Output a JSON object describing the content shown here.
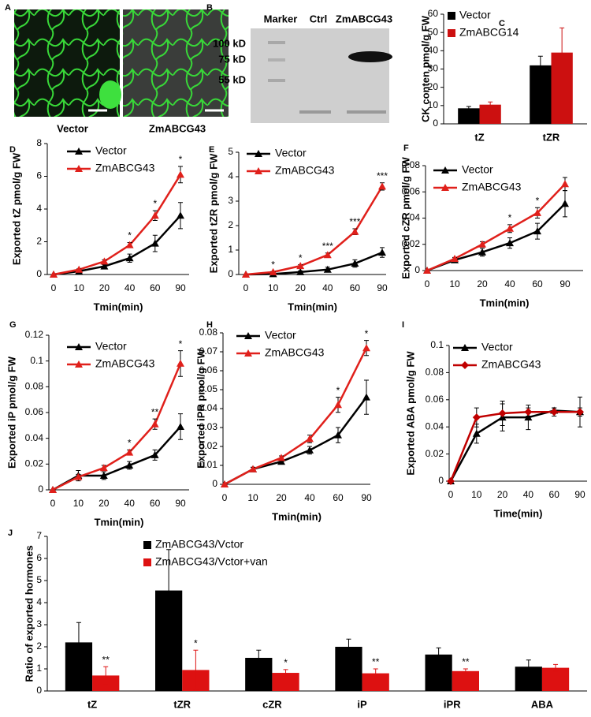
{
  "figure": {
    "panel_a": {
      "label": "A",
      "captions": [
        "Vector",
        "ZmABCG43"
      ]
    },
    "panel_b": {
      "label": "B",
      "lanes": [
        "Marker",
        "Ctrl",
        "ZmABCG43"
      ],
      "markers": [
        "100 kD",
        "75 kD",
        "55 kD"
      ]
    }
  },
  "chart_data": [
    {
      "panel": "C",
      "type": "bar",
      "ylabel": "CK conten pmol/g FW",
      "categories": [
        "tZ",
        "tZR"
      ],
      "series": [
        {
          "name": "Vector",
          "color": "#000000",
          "values": [
            8.5,
            32
          ],
          "errors": [
            1,
            5
          ]
        },
        {
          "name": "ZmABCG14",
          "color": "#cc1010",
          "values": [
            10.5,
            39
          ],
          "errors": [
            1.5,
            13.5
          ]
        }
      ],
      "ylim": [
        0,
        60
      ],
      "yticks": [
        0,
        10,
        20,
        30,
        40,
        50,
        60
      ],
      "legend": "upper left"
    },
    {
      "panel": "D",
      "type": "line",
      "xlabel": "Tmin(min)",
      "ylabel": "Exported tZ pmol/g FW",
      "categories": [
        "0",
        "10",
        "20",
        "40",
        "60",
        "90"
      ],
      "series": [
        {
          "name": "Vector",
          "color": "#000000",
          "marker": "triangle",
          "values": [
            0,
            0.2,
            0.5,
            1.0,
            1.9,
            3.6
          ],
          "errors": [
            0,
            0.05,
            0.1,
            0.25,
            0.5,
            0.8
          ]
        },
        {
          "name": "ZmABCG43",
          "color": "#e0201b",
          "marker": "triangle",
          "values": [
            0,
            0.3,
            0.8,
            1.8,
            3.6,
            6.1
          ],
          "errors": [
            0,
            0.05,
            0.1,
            0.15,
            0.3,
            0.5
          ]
        }
      ],
      "significance": [
        null,
        null,
        null,
        "*",
        "*",
        "*"
      ],
      "ylim": [
        0,
        8
      ],
      "yticks": [
        0,
        2,
        4,
        6,
        8
      ],
      "legend": "upper left"
    },
    {
      "panel": "E",
      "type": "line",
      "xlabel": "Tmin(min)",
      "ylabel": "Exported tZR pmol/g FW",
      "categories": [
        "0",
        "10",
        "20",
        "40",
        "60",
        "90"
      ],
      "series": [
        {
          "name": "Vector",
          "color": "#000000",
          "marker": "triangle",
          "values": [
            0,
            0.02,
            0.1,
            0.2,
            0.45,
            0.9
          ],
          "errors": [
            0,
            0.02,
            0.05,
            0.1,
            0.15,
            0.2
          ]
        },
        {
          "name": "ZmABCG43",
          "color": "#e0201b",
          "marker": "triangle",
          "values": [
            0,
            0.1,
            0.35,
            0.8,
            1.75,
            3.6
          ],
          "errors": [
            0,
            0.02,
            0.05,
            0.08,
            0.12,
            0.15
          ]
        }
      ],
      "significance": [
        null,
        "*",
        "*",
        "***",
        "***",
        "***"
      ],
      "ylim": [
        0,
        5
      ],
      "yticks": [
        0,
        1,
        2,
        3,
        4,
        5
      ],
      "legend": "upper left"
    },
    {
      "panel": "F",
      "type": "line",
      "xlabel": "Tmin(min)",
      "ylabel": "Exported cZR pmol/g FW",
      "categories": [
        "0",
        "10",
        "20",
        "40",
        "60",
        "90"
      ],
      "series": [
        {
          "name": "Vector",
          "color": "#000000",
          "marker": "triangle",
          "values": [
            0,
            0.008,
            0.014,
            0.021,
            0.03,
            0.051
          ],
          "errors": [
            0,
            0.001,
            0.003,
            0.004,
            0.006,
            0.01
          ]
        },
        {
          "name": "ZmABCG43",
          "color": "#e0201b",
          "marker": "triangle",
          "values": [
            0,
            0.009,
            0.02,
            0.032,
            0.044,
            0.066
          ],
          "errors": [
            0,
            0.001,
            0.002,
            0.003,
            0.004,
            0.005
          ]
        }
      ],
      "significance": [
        null,
        null,
        null,
        "*",
        "*",
        null
      ],
      "ylim": [
        0,
        0.08
      ],
      "yticks": [
        0,
        0.02,
        0.04,
        0.06,
        0.08
      ],
      "legend": "upper left"
    },
    {
      "panel": "G",
      "type": "line",
      "xlabel": "Tmin(min)",
      "ylabel": "Exported iP pmol/g FW",
      "categories": [
        "0",
        "10",
        "20",
        "40",
        "60",
        "90"
      ],
      "series": [
        {
          "name": "Vector",
          "color": "#000000",
          "marker": "triangle",
          "values": [
            0,
            0.011,
            0.011,
            0.019,
            0.027,
            0.049
          ],
          "errors": [
            0,
            0.004,
            0.003,
            0.003,
            0.004,
            0.01
          ]
        },
        {
          "name": "ZmABCG43",
          "color": "#e0201b",
          "marker": "triangle",
          "values": [
            0,
            0.01,
            0.017,
            0.029,
            0.051,
            0.098
          ],
          "errors": [
            0,
            0.002,
            0.002,
            0.002,
            0.004,
            0.01
          ]
        }
      ],
      "significance": [
        null,
        null,
        null,
        "*",
        "**",
        "*"
      ],
      "ylim": [
        0,
        0.12
      ],
      "yticks": [
        0,
        0.02,
        0.04,
        0.06,
        0.08,
        0.1,
        0.12
      ],
      "legend": "upper left"
    },
    {
      "panel": "H",
      "type": "line",
      "xlabel": "Tmin(min)",
      "ylabel": "Exported iPR pmol/g FW",
      "categories": [
        "0",
        "10",
        "20",
        "40",
        "60",
        "90"
      ],
      "series": [
        {
          "name": "Vector",
          "color": "#000000",
          "marker": "triangle",
          "values": [
            0,
            0.008,
            0.012,
            0.018,
            0.026,
            0.046
          ],
          "errors": [
            0,
            0.001,
            0.001,
            0.002,
            0.004,
            0.009
          ]
        },
        {
          "name": "ZmABCG43",
          "color": "#e0201b",
          "marker": "triangle",
          "values": [
            0,
            0.008,
            0.014,
            0.024,
            0.042,
            0.072
          ],
          "errors": [
            0,
            0.001,
            0.001,
            0.002,
            0.004,
            0.004
          ]
        }
      ],
      "significance": [
        null,
        null,
        null,
        null,
        "*",
        "*"
      ],
      "ylim": [
        0,
        0.08
      ],
      "yticks": [
        0,
        0.01,
        0.02,
        0.03,
        0.04,
        0.05,
        0.06,
        0.07,
        0.08
      ],
      "legend": "upper left"
    },
    {
      "panel": "I",
      "type": "line",
      "xlabel": "Time(min)",
      "ylabel": "Exported ABA pmol/g FW",
      "categories": [
        "0",
        "10",
        "20",
        "40",
        "60",
        "90"
      ],
      "series": [
        {
          "name": "Vector",
          "color": "#000000",
          "marker": "triangle",
          "values": [
            0,
            0.035,
            0.047,
            0.047,
            0.052,
            0.051
          ],
          "errors": [
            0,
            0.007,
            0.01,
            0.009,
            0.002,
            0.011
          ]
        },
        {
          "name": "ZmABCG43",
          "color": "#c00000",
          "marker": "diamond",
          "values": [
            0,
            0.047,
            0.05,
            0.051,
            0.051,
            0.051
          ],
          "errors": [
            0,
            0.007,
            0.009,
            0.003,
            0.003,
            0.003
          ]
        }
      ],
      "ylim": [
        0,
        0.1
      ],
      "yticks": [
        0,
        0.02,
        0.04,
        0.06,
        0.08,
        0.1
      ],
      "legend": "upper left"
    },
    {
      "panel": "J",
      "type": "bar",
      "ylabel": "Ratio of exported hormones",
      "categories": [
        "tZ",
        "tZR",
        "cZR",
        "iP",
        "iPR",
        "ABA"
      ],
      "series": [
        {
          "name": "ZmABCG43/Vctor",
          "color": "#000000",
          "values": [
            2.2,
            4.55,
            1.5,
            2.0,
            1.65,
            1.1
          ],
          "errors": [
            0.9,
            1.85,
            0.35,
            0.35,
            0.3,
            0.3
          ]
        },
        {
          "name": "ZmABCG43/Vctor+van",
          "color": "#dd1111",
          "values": [
            0.7,
            0.95,
            0.82,
            0.8,
            0.9,
            1.05
          ],
          "errors": [
            0.4,
            0.9,
            0.15,
            0.2,
            0.1,
            0.15
          ]
        }
      ],
      "significance": [
        "**",
        "*",
        "*",
        "**",
        "**",
        null
      ],
      "ylim": [
        0,
        7
      ],
      "yticks": [
        0,
        1,
        2,
        3,
        4,
        5,
        6,
        7
      ],
      "legend": "upper left"
    }
  ]
}
